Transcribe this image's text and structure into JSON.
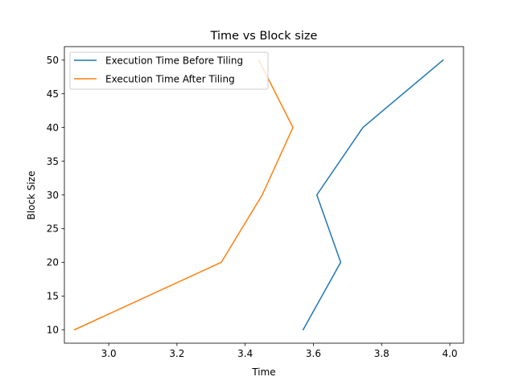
{
  "chart_data": {
    "type": "line",
    "title": "Time vs Block size",
    "xlabel": "Time",
    "ylabel": "Block Size",
    "xlim": [
      2.87,
      4.04
    ],
    "ylim": [
      8,
      52
    ],
    "xticks": [
      3.0,
      3.2,
      3.4,
      3.6,
      3.8,
      4.0
    ],
    "xtick_labels": [
      "3.0",
      "3.2",
      "3.4",
      "3.6",
      "3.8",
      "4.0"
    ],
    "yticks": [
      10,
      15,
      20,
      25,
      30,
      35,
      40,
      45,
      50
    ],
    "ytick_labels": [
      "10",
      "15",
      "20",
      "25",
      "30",
      "35",
      "40",
      "45",
      "50"
    ],
    "grid": false,
    "legend_position": "top-left",
    "series": [
      {
        "name": "Execution Time Before Tiling",
        "color": "#1f77b4",
        "x": [
          3.57,
          3.68,
          3.61,
          3.745,
          3.98
        ],
        "y": [
          10,
          20,
          30,
          40,
          50
        ]
      },
      {
        "name": "Execution Time After Tiling",
        "color": "#ff7f0e",
        "x": [
          2.9,
          3.33,
          3.45,
          3.54,
          3.44
        ],
        "y": [
          10,
          20,
          30,
          40,
          50
        ]
      }
    ]
  }
}
